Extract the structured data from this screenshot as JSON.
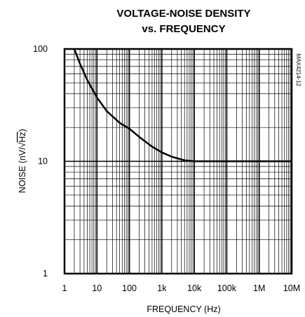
{
  "chart_data": {
    "type": "line",
    "title_line1": "VOLTAGE-NOISE DENSITY",
    "title_line2": "vs. FREQUENCY",
    "xlabel": "FREQUENCY (Hz)",
    "ylabel_prefix": "NOISE (nV/",
    "ylabel_radicand": "Hz",
    "ylabel_suffix": ")",
    "part_number": "MAX4214-12",
    "x_scale": "log",
    "y_scale": "log",
    "xlim": [
      1,
      10000000
    ],
    "ylim": [
      1,
      100
    ],
    "x_ticks": [
      1,
      10,
      100,
      1000,
      10000,
      100000,
      1000000,
      10000000
    ],
    "x_tick_labels": [
      "1",
      "10",
      "100",
      "1k",
      "10k",
      "100k",
      "1M",
      "10M"
    ],
    "y_ticks": [
      1,
      10,
      100
    ],
    "y_tick_labels": [
      "1",
      "10",
      "100"
    ],
    "grid": true,
    "series": [
      {
        "x": [
          2,
          3,
          5,
          10,
          20,
          50,
          100,
          200,
          500,
          1000,
          2000,
          5000,
          10000,
          100000,
          1000000,
          10000000
        ],
        "y": [
          100,
          74,
          53,
          37,
          28,
          22,
          19.5,
          16.5,
          13.5,
          12,
          11,
          10.2,
          10,
          10,
          10,
          10
        ]
      }
    ]
  }
}
